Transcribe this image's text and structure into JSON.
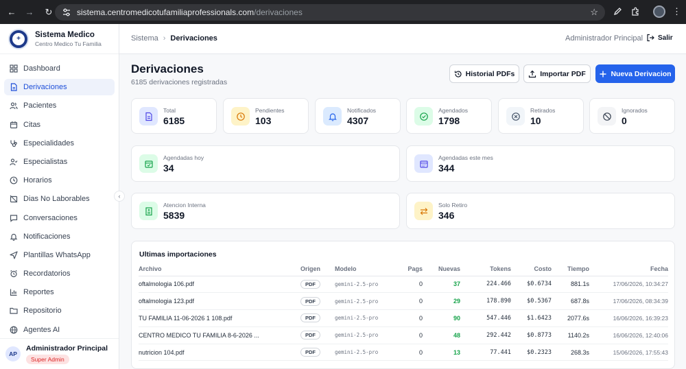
{
  "browser": {
    "url_host": "sistema.centromedicotufamiliaprofessionals.com",
    "url_path": "/derivaciones"
  },
  "sidebar": {
    "brand_title": "Sistema Medico",
    "brand_subtitle": "Centro Medico Tu Familia",
    "items": [
      {
        "label": "Dashboard",
        "icon": "grid-icon"
      },
      {
        "label": "Derivaciones",
        "icon": "file-icon"
      },
      {
        "label": "Pacientes",
        "icon": "users-icon"
      },
      {
        "label": "Citas",
        "icon": "calendar-icon"
      },
      {
        "label": "Especialidades",
        "icon": "stethoscope-icon"
      },
      {
        "label": "Especialistas",
        "icon": "user-check-icon"
      },
      {
        "label": "Horarios",
        "icon": "clock-icon"
      },
      {
        "label": "Dias No Laborables",
        "icon": "calendar-off-icon"
      },
      {
        "label": "Conversaciones",
        "icon": "chat-icon"
      },
      {
        "label": "Notificaciones",
        "icon": "bell-icon"
      },
      {
        "label": "Plantillas WhatsApp",
        "icon": "send-icon"
      },
      {
        "label": "Recordatorios",
        "icon": "alarm-icon"
      },
      {
        "label": "Reportes",
        "icon": "bar-chart-icon"
      },
      {
        "label": "Repositorio",
        "icon": "folder-icon"
      },
      {
        "label": "Agentes AI",
        "icon": "globe-icon"
      }
    ],
    "user": {
      "initials": "AP",
      "name": "Administrador Principal",
      "role": "Super Admin"
    }
  },
  "topbar": {
    "crumb_root": "Sistema",
    "crumb_current": "Derivaciones",
    "admin_name": "Administrador Principal",
    "logout_label": "Salir"
  },
  "header": {
    "title": "Derivaciones",
    "subtitle": "6185 derivaciones registradas",
    "btn_history": "Historial PDFs",
    "btn_import": "Importar PDF",
    "btn_new": "Nueva Derivacion"
  },
  "stats": [
    {
      "label": "Total",
      "value": "6185"
    },
    {
      "label": "Pendientes",
      "value": "103"
    },
    {
      "label": "Notificados",
      "value": "4307"
    },
    {
      "label": "Agendados",
      "value": "1798"
    },
    {
      "label": "Retirados",
      "value": "10"
    },
    {
      "label": "Ignorados",
      "value": "0"
    }
  ],
  "wide_stats": [
    {
      "label": "Agendadas hoy",
      "value": "34"
    },
    {
      "label": "Agendadas este mes",
      "value": "344"
    },
    {
      "label": "Atencion Interna",
      "value": "5839"
    },
    {
      "label": "Solo Retiro",
      "value": "346"
    }
  ],
  "imports": {
    "title": "Ultimas importaciones",
    "columns": [
      "Archivo",
      "Origen",
      "Modelo",
      "Pags",
      "Nuevas",
      "Tokens",
      "Costo",
      "Tiempo",
      "Fecha"
    ],
    "rows": [
      [
        "oftalmologia 106.pdf",
        "PDF",
        "gemini-2.5-pro",
        "0",
        "37",
        "224.466",
        "$0.6734",
        "881.1s",
        "17/06/2026, 10:34:27"
      ],
      [
        "oftalmologia 123.pdf",
        "PDF",
        "gemini-2.5-pro",
        "0",
        "29",
        "178.890",
        "$0.5367",
        "687.8s",
        "17/06/2026, 08:34:39"
      ],
      [
        "TU FAMILIA 11-06-2026 1 108.pdf",
        "PDF",
        "gemini-2.5-pro",
        "0",
        "90",
        "547.446",
        "$1.6423",
        "2077.6s",
        "16/06/2026, 16:39:23"
      ],
      [
        "CENTRO MEDICO TU FAMILIA 8-6-2026 ...",
        "PDF",
        "gemini-2.5-pro",
        "0",
        "48",
        "292.442",
        "$0.8773",
        "1140.2s",
        "16/06/2026, 12:40:06"
      ],
      [
        "nutricion 104.pdf",
        "PDF",
        "gemini-2.5-pro",
        "0",
        "13",
        "77.441",
        "$0.2323",
        "268.3s",
        "15/06/2026, 17:55:43"
      ]
    ]
  },
  "colors": {
    "primary": "#2563eb",
    "positive": "#16a34a",
    "badge_red": "#dc2626"
  }
}
